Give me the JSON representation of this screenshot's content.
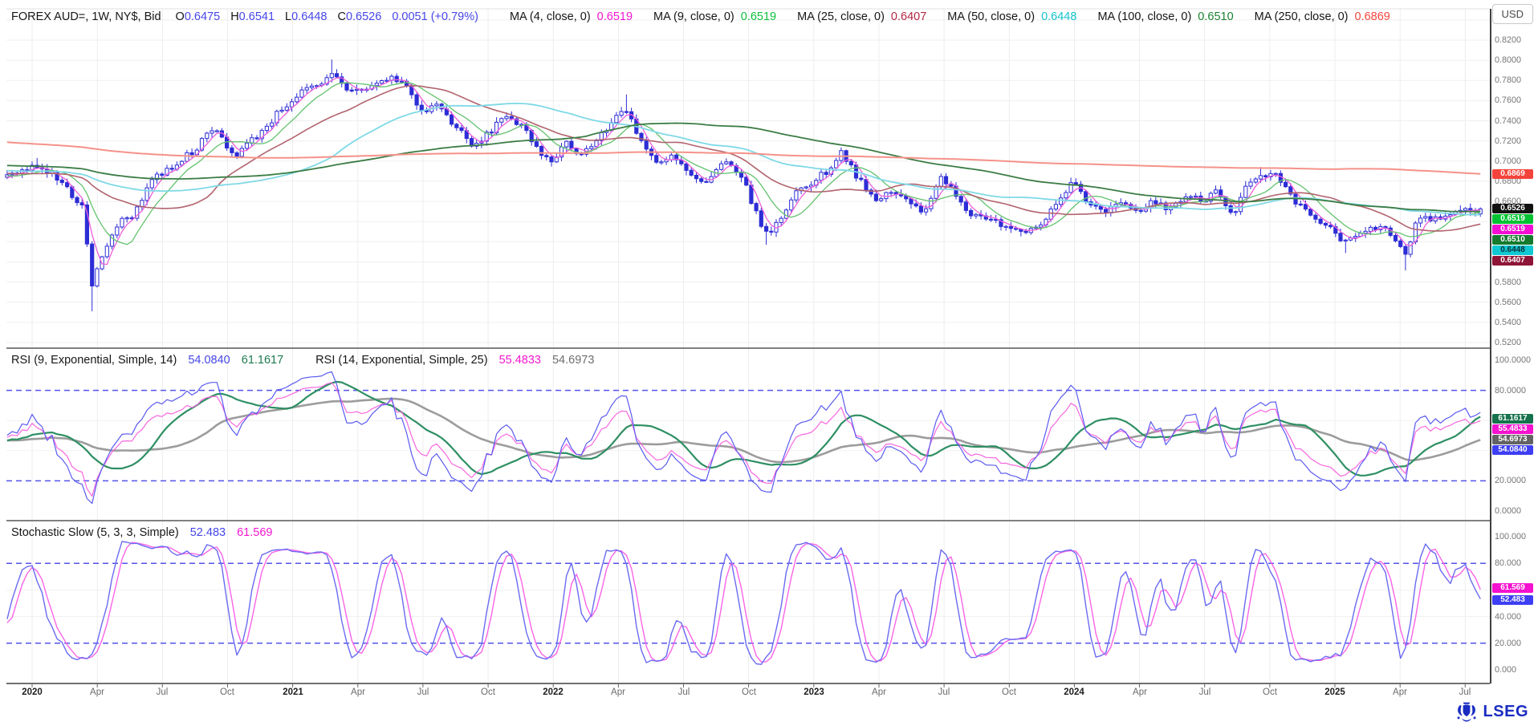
{
  "header": {
    "title": "FOREX AUD=, 1W, NY$, Bid",
    "fields": [
      {
        "label": "O",
        "value": "0.6475"
      },
      {
        "label": "H",
        "value": "0.6541"
      },
      {
        "label": "L",
        "value": "0.6448"
      },
      {
        "label": "C",
        "value": "0.6526"
      }
    ],
    "change": "0.0051",
    "change_pct": "(+0.79%)",
    "value_color": "#4646e8",
    "currency_button": "USD",
    "mas": [
      {
        "label": "MA (4, close, 0)",
        "value": "0.6519",
        "value_color": "#f316d2"
      },
      {
        "label": "MA (9, close, 0)",
        "value": "0.6519",
        "value_color": "#0dbf3c"
      },
      {
        "label": "MA (25, close, 0)",
        "value": "0.6407",
        "value_color": "#b22744"
      },
      {
        "label": "MA (50, close, 0)",
        "value": "0.6448",
        "value_color": "#14c3ce"
      },
      {
        "label": "MA (100, close, 0)",
        "value": "0.6510",
        "value_color": "#1d8030"
      },
      {
        "label": "MA (250, close, 0)",
        "value": "0.6869",
        "value_color": "#f2453d"
      }
    ]
  },
  "footer": {
    "brand": "LSEG"
  },
  "seed": 7,
  "x_axis": {
    "ticks": [
      {
        "m": 0,
        "label": "2020",
        "year": true
      },
      {
        "m": 3,
        "label": "Apr"
      },
      {
        "m": 6,
        "label": "Jul"
      },
      {
        "m": 9,
        "label": "Oct"
      },
      {
        "m": 12,
        "label": "2021",
        "year": true
      },
      {
        "m": 15,
        "label": "Apr"
      },
      {
        "m": 18,
        "label": "Jul"
      },
      {
        "m": 21,
        "label": "Oct"
      },
      {
        "m": 24,
        "label": "2022",
        "year": true
      },
      {
        "m": 27,
        "label": "Apr"
      },
      {
        "m": 30,
        "label": "Jul"
      },
      {
        "m": 33,
        "label": "Oct"
      },
      {
        "m": 36,
        "label": "2023",
        "year": true
      },
      {
        "m": 39,
        "label": "Apr"
      },
      {
        "m": 42,
        "label": "Jul"
      },
      {
        "m": 45,
        "label": "Oct"
      },
      {
        "m": 48,
        "label": "2024",
        "year": true
      },
      {
        "m": 51,
        "label": "Apr"
      },
      {
        "m": 54,
        "label": "Jul"
      },
      {
        "m": 57,
        "label": "Oct"
      },
      {
        "m": 60,
        "label": "2025",
        "year": true
      },
      {
        "m": 63,
        "label": "Apr"
      },
      {
        "m": 66,
        "label": "Jul"
      }
    ]
  },
  "chart_data": [
    {
      "type": "candlestick",
      "title": "FOREX AUD=, 1W, NY$, Bid",
      "interval": "1W",
      "last_candle": {
        "open": 0.6475,
        "high": 0.6541,
        "low": 0.6448,
        "close": 0.6526,
        "change": 0.0051,
        "change_pct": 0.79
      },
      "candle_color": "#2d2dd6",
      "y_range": [
        0.515,
        0.851
      ],
      "y_ticks": [
        "0.8200",
        "0.8000",
        "0.7800",
        "0.7600",
        "0.7400",
        "0.7200",
        "0.7000",
        "0.6800",
        "0.6600",
        "0.6400",
        "0.6200",
        "0.6000",
        "0.5800",
        "0.5600",
        "0.5400",
        "0.5200"
      ],
      "close_anchors": [
        [
          -1.2,
          0.684
        ],
        [
          0,
          0.696
        ],
        [
          0.9,
          0.688
        ],
        [
          1.8,
          0.668
        ],
        [
          2.3,
          0.655
        ],
        [
          2.75,
          0.577
        ],
        [
          3.2,
          0.603
        ],
        [
          3.8,
          0.636
        ],
        [
          4.6,
          0.645
        ],
        [
          5.5,
          0.682
        ],
        [
          6.5,
          0.695
        ],
        [
          7.5,
          0.712
        ],
        [
          8.4,
          0.733
        ],
        [
          9.3,
          0.705
        ],
        [
          10.5,
          0.728
        ],
        [
          11.5,
          0.752
        ],
        [
          12.5,
          0.77
        ],
        [
          13.3,
          0.774
        ],
        [
          13.85,
          0.787
        ],
        [
          14.4,
          0.772
        ],
        [
          15.0,
          0.77
        ],
        [
          15.8,
          0.776
        ],
        [
          16.6,
          0.783
        ],
        [
          17.3,
          0.774
        ],
        [
          17.9,
          0.748
        ],
        [
          18.6,
          0.757
        ],
        [
          19.5,
          0.735
        ],
        [
          20.3,
          0.713
        ],
        [
          21.0,
          0.727
        ],
        [
          21.8,
          0.747
        ],
        [
          22.6,
          0.733
        ],
        [
          23.2,
          0.712
        ],
        [
          23.9,
          0.701
        ],
        [
          24.6,
          0.718
        ],
        [
          25.3,
          0.707
        ],
        [
          26.1,
          0.722
        ],
        [
          26.8,
          0.741
        ],
        [
          27.3,
          0.755
        ],
        [
          28.0,
          0.722
        ],
        [
          28.8,
          0.695
        ],
        [
          29.5,
          0.705
        ],
        [
          30.3,
          0.686
        ],
        [
          31.0,
          0.676
        ],
        [
          31.9,
          0.699
        ],
        [
          32.6,
          0.689
        ],
        [
          33.3,
          0.65
        ],
        [
          33.9,
          0.625
        ],
        [
          34.4,
          0.641
        ],
        [
          35.1,
          0.668
        ],
        [
          35.9,
          0.679
        ],
        [
          36.6,
          0.69
        ],
        [
          37.3,
          0.71
        ],
        [
          38.1,
          0.681
        ],
        [
          38.8,
          0.659
        ],
        [
          39.6,
          0.671
        ],
        [
          40.3,
          0.66
        ],
        [
          41.1,
          0.648
        ],
        [
          41.8,
          0.687
        ],
        [
          42.6,
          0.666
        ],
        [
          43.3,
          0.645
        ],
        [
          44.1,
          0.641
        ],
        [
          44.9,
          0.637
        ],
        [
          45.6,
          0.63
        ],
        [
          46.3,
          0.636
        ],
        [
          47.1,
          0.656
        ],
        [
          47.9,
          0.681
        ],
        [
          48.6,
          0.657
        ],
        [
          49.3,
          0.648
        ],
        [
          50.1,
          0.657
        ],
        [
          50.9,
          0.649
        ],
        [
          51.6,
          0.66
        ],
        [
          52.4,
          0.653
        ],
        [
          53.1,
          0.665
        ],
        [
          53.9,
          0.661
        ],
        [
          54.6,
          0.673
        ],
        [
          55.3,
          0.646
        ],
        [
          55.9,
          0.674
        ],
        [
          56.6,
          0.684
        ],
        [
          57.3,
          0.685
        ],
        [
          58.1,
          0.66
        ],
        [
          58.9,
          0.646
        ],
        [
          59.6,
          0.636
        ],
        [
          60.4,
          0.619
        ],
        [
          61.1,
          0.626
        ],
        [
          61.9,
          0.635
        ],
        [
          62.6,
          0.628
        ],
        [
          63.3,
          0.604
        ],
        [
          63.7,
          0.639
        ],
        [
          64.4,
          0.643
        ],
        [
          65.1,
          0.645
        ],
        [
          65.9,
          0.653
        ],
        [
          66.4,
          0.6475
        ],
        [
          66.7,
          0.6526
        ]
      ],
      "prehistory_anchors": [
        [
          -62,
          0.772
        ],
        [
          -52,
          0.756
        ],
        [
          -44,
          0.742
        ],
        [
          -36,
          0.718
        ],
        [
          -28,
          0.708
        ],
        [
          -20,
          0.702
        ],
        [
          -12,
          0.694
        ],
        [
          -6,
          0.69
        ],
        [
          -1.3,
          0.685
        ]
      ],
      "wick_lows": [
        [
          2.75,
          0.551
        ],
        [
          33.9,
          0.617
        ],
        [
          60.4,
          0.6088
        ],
        [
          63.3,
          0.5915
        ]
      ],
      "wick_highs": [
        [
          0.2,
          0.7031
        ],
        [
          13.85,
          0.8007
        ],
        [
          27.3,
          0.7661
        ],
        [
          56.6,
          0.6942
        ]
      ],
      "moving_averages": [
        {
          "period": 4,
          "value": 0.6519,
          "line_color": "#ef5ed8",
          "width": 1.3
        },
        {
          "period": 9,
          "value": 0.6519,
          "line_color": "#63c26e",
          "width": 1.3
        },
        {
          "period": 25,
          "value": 0.6407,
          "line_color": "#b2636e",
          "width": 1.6
        },
        {
          "period": 50,
          "value": 0.6448,
          "line_color": "#7fd9e6",
          "width": 1.8
        },
        {
          "period": 100,
          "value": 0.651,
          "line_color": "#3b7d45",
          "width": 1.8
        },
        {
          "period": 250,
          "value": 0.6869,
          "line_color": "#f59289",
          "width": 2.0
        }
      ],
      "price_badges": [
        {
          "value": 0.6869,
          "label": "0.6869",
          "bg": "#f4433a",
          "fg": "#fff"
        },
        {
          "value": 0.6526,
          "label": "0.6526",
          "bg": "#111111",
          "fg": "#fff"
        },
        {
          "value": 0.6519,
          "label": "0.6519",
          "bg": "#00c232",
          "fg": "#fff"
        },
        {
          "value": 0.65189,
          "label": "0.6519",
          "bg": "#f50dd3",
          "fg": "#fff"
        },
        {
          "value": 0.651,
          "label": "0.6510",
          "bg": "#157a2e",
          "fg": "#fff"
        },
        {
          "value": 0.6448,
          "label": "0.6448",
          "bg": "#10c8d2",
          "fg": "#073238"
        },
        {
          "value": 0.6407,
          "label": "0.6407",
          "bg": "#8e1538",
          "fg": "#fff"
        }
      ]
    },
    {
      "type": "line",
      "name": "RSI",
      "legend": [
        {
          "text": "RSI (9, Exponential, Simple, 14)",
          "color": "#161616"
        },
        {
          "text": "54.0840",
          "color": "#4646e8"
        },
        {
          "text": "61.1617",
          "color": "#1d7a50"
        },
        {
          "text": "RSI (14, Exponential, Simple, 25)",
          "color": "#161616",
          "gap": true
        },
        {
          "text": "55.4833",
          "color": "#f318cf"
        },
        {
          "text": "54.6973",
          "color": "#6e6e6e"
        }
      ],
      "lines": [
        {
          "name": "RSI 9",
          "period": 9,
          "value": 54.084,
          "color": "#5b5bf0",
          "width": 1.2
        },
        {
          "name": "RSI 14",
          "period": 14,
          "value": 55.4833,
          "color": "#f767de",
          "width": 1.2
        },
        {
          "name": "SMA 14 of RSI 9",
          "period": 14,
          "value": 61.1617,
          "color": "#2e8f63",
          "width": 2.2
        },
        {
          "name": "SMA 25 of RSI 14",
          "period": 25,
          "value": 54.6973,
          "color": "#9c9c9c",
          "width": 2.6
        }
      ],
      "dashed_levels": [
        80,
        20
      ],
      "y_ticks": [
        "100.0000",
        "80.0000",
        "60.0000",
        "40.0000",
        "20.0000",
        "0.0000"
      ],
      "badges": [
        {
          "value": 61.1617,
          "label": "61.1617",
          "bg": "#16724c",
          "fg": "#fff"
        },
        {
          "value": 55.4833,
          "label": "55.4833",
          "bg": "#f411cf",
          "fg": "#fff"
        },
        {
          "value": 54.6973,
          "label": "54.6973",
          "bg": "#636363",
          "fg": "#fff"
        },
        {
          "value": 54.084,
          "label": "54.0840",
          "bg": "#3e3ef4",
          "fg": "#fff"
        }
      ]
    },
    {
      "type": "line",
      "name": "Stochastic Slow",
      "params": "(5, 3, 3, Simple)",
      "legend": [
        {
          "text": "Stochastic Slow (5, 3, 3, Simple)",
          "color": "#161616"
        },
        {
          "text": "52.483",
          "color": "#4646e8"
        },
        {
          "text": "61.569",
          "color": "#f318cf"
        }
      ],
      "lines": [
        {
          "name": "%K",
          "value": 52.483,
          "color": "#6a6af2",
          "width": 1.4
        },
        {
          "name": "%D",
          "value": 61.569,
          "color": "#fa64e6",
          "width": 1.4
        }
      ],
      "dashed_levels": [
        80,
        20
      ],
      "y_ticks": [
        "100.000",
        "80.000",
        "60.000",
        "40.000",
        "20.000",
        "0.000"
      ],
      "badges": [
        {
          "value": 61.569,
          "label": "61.569",
          "bg": "#f411cf",
          "fg": "#fff"
        },
        {
          "value": 52.483,
          "label": "52.483",
          "bg": "#3e3ef4",
          "fg": "#fff"
        }
      ]
    }
  ]
}
